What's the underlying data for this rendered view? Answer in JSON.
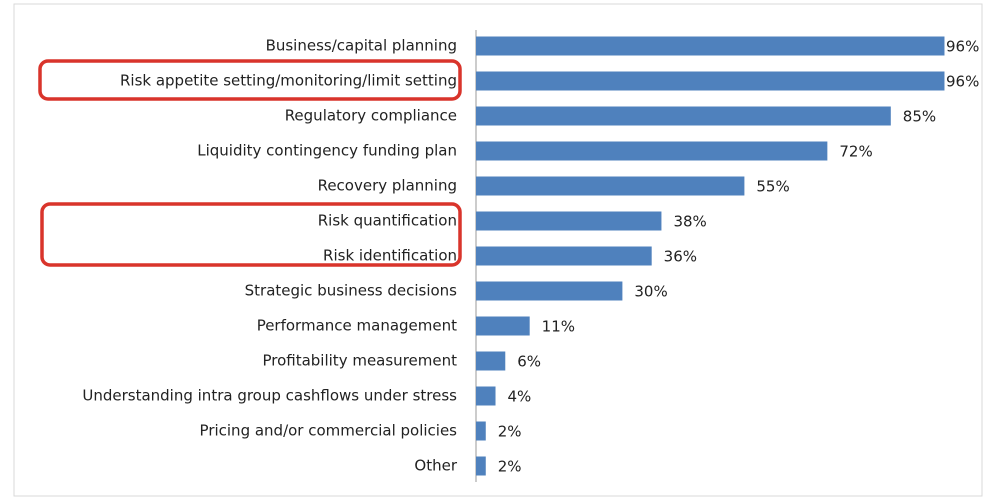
{
  "chart_data": {
    "type": "bar",
    "orientation": "horizontal",
    "categories": [
      "Business/capital planning",
      "Risk appetite setting/monitoring/limit setting",
      "Regulatory compliance",
      "Liquidity contingency funding plan",
      "Recovery planning",
      "Risk quantification",
      "Risk identification",
      "Strategic business decisions",
      "Performance management",
      "Profitability measurement",
      "Understanding intra group cashflows under stress",
      "Pricing and/or commercial policies",
      "Other"
    ],
    "values": [
      96,
      96,
      85,
      72,
      55,
      38,
      36,
      30,
      11,
      6,
      4,
      2,
      2
    ],
    "value_labels": [
      "96%",
      "96%",
      "85%",
      "72%",
      "55%",
      "38%",
      "36%",
      "30%",
      "11%",
      "6%",
      "4%",
      "2%",
      "2%"
    ],
    "color": "#4f81bd",
    "xlim": [
      0,
      100
    ]
  }
}
